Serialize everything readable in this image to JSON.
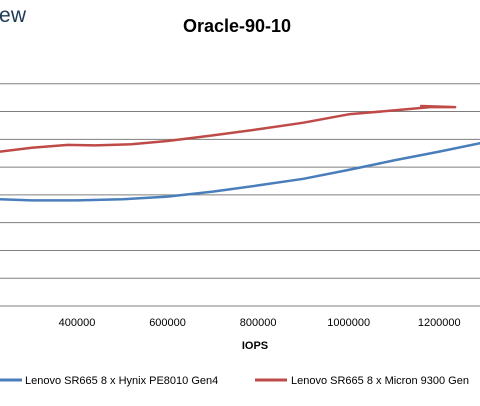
{
  "brand": {
    "text": "ew"
  },
  "chart_data": {
    "type": "line",
    "title": "Oracle-90-10",
    "xlabel": "IOPS",
    "ylabel": "",
    "xlim": [
      230000,
      1290000
    ],
    "ylim": [
      0,
      4.5
    ],
    "x_ticks": [
      400000,
      600000,
      800000,
      1000000,
      1200000
    ],
    "x_tick_labels": [
      "400000",
      "600000",
      "800000",
      "1000000",
      "1200000"
    ],
    "y_gridlines": [
      0.5,
      1,
      1.5,
      2,
      2.5,
      3,
      3.5,
      4
    ],
    "grid": true,
    "legend": "bottom",
    "colors": {
      "series1": "#4a7ebb",
      "series2": "#be4b48",
      "grid": "#7f7f7f",
      "text": "#000000"
    },
    "series": [
      {
        "name": "Lenovo SR665 8 x Hynix PE8010 Gen4",
        "color": "#4a7ebb",
        "points": [
          [
            230000,
            1.92
          ],
          [
            300000,
            1.9
          ],
          [
            400000,
            1.9
          ],
          [
            500000,
            1.92
          ],
          [
            600000,
            1.97
          ],
          [
            700000,
            2.06
          ],
          [
            800000,
            2.17
          ],
          [
            900000,
            2.29
          ],
          [
            1000000,
            2.45
          ],
          [
            1100000,
            2.62
          ],
          [
            1200000,
            2.78
          ],
          [
            1290000,
            2.93
          ]
        ]
      },
      {
        "name": "Lenovo SR665 8 x Micron 9300 Gen",
        "color": "#be4b48",
        "points": [
          [
            230000,
            2.78
          ],
          [
            300000,
            2.85
          ],
          [
            380000,
            2.9
          ],
          [
            440000,
            2.89
          ],
          [
            520000,
            2.91
          ],
          [
            600000,
            2.97
          ],
          [
            700000,
            3.07
          ],
          [
            800000,
            3.18
          ],
          [
            900000,
            3.3
          ],
          [
            1000000,
            3.45
          ],
          [
            1100000,
            3.52
          ],
          [
            1180000,
            3.58
          ],
          [
            1235000,
            3.58
          ],
          [
            1160000,
            3.6
          ]
        ]
      }
    ]
  }
}
